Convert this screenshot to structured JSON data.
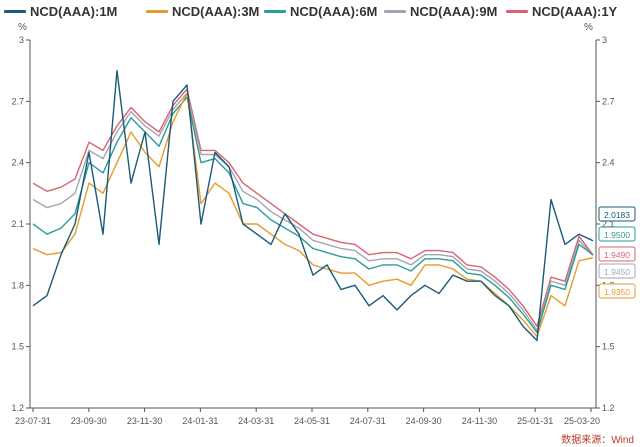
{
  "legend": [
    {
      "name": "NCD(AAA):1M",
      "color": "#1b5a78"
    },
    {
      "name": "NCD(AAA):3M",
      "color": "#e89a2c"
    },
    {
      "name": "NCD(AAA):6M",
      "color": "#2a9d9a"
    },
    {
      "name": "NCD(AAA):9M",
      "color": "#a0a7b3"
    },
    {
      "name": "NCD(AAA):1Y",
      "color": "#d9646e"
    }
  ],
  "source_text": "数据来源：Wind",
  "chart_data": {
    "type": "line",
    "xlabel": "",
    "ylabel_left": "%",
    "ylabel_right": "%",
    "ylim": [
      1.2,
      3.0
    ],
    "yticks": [
      "1.2",
      "1.5",
      "1.8",
      "2.1",
      "2.4",
      "2.7",
      "3"
    ],
    "xticks": [
      "23-07-31",
      "23-09-30",
      "23-11-30",
      "24-01-31",
      "24-03-31",
      "24-05-31",
      "24-07-31",
      "24-09-30",
      "24-11-30",
      "25-01-31",
      "25-03-20"
    ],
    "grid": false,
    "legend_position": "top",
    "end_labels": [
      {
        "series": "NCD(AAA):1M",
        "value": "2.0183"
      },
      {
        "series": "NCD(AAA):6M",
        "value": "1.9500"
      },
      {
        "series": "NCD(AAA):1Y",
        "value": "1.9490"
      },
      {
        "series": "NCD(AAA):9M",
        "value": "1.9450"
      },
      {
        "series": "NCD(AAA):3M",
        "value": "1.9350"
      }
    ],
    "series": [
      {
        "name": "NCD(AAA):1M",
        "color": "#1b5a78",
        "values": [
          1.7,
          1.75,
          1.95,
          2.1,
          2.45,
          2.05,
          2.85,
          2.3,
          2.55,
          2.0,
          2.7,
          2.78,
          2.1,
          2.45,
          2.38,
          2.1,
          2.05,
          2.0,
          2.15,
          2.05,
          1.85,
          1.9,
          1.78,
          1.8,
          1.7,
          1.75,
          1.68,
          1.75,
          1.8,
          1.76,
          1.85,
          1.82,
          1.82,
          1.75,
          1.7,
          1.6,
          1.53,
          2.22,
          2.0,
          2.05,
          2.0183
        ]
      },
      {
        "name": "NCD(AAA):3M",
        "color": "#e89a2c",
        "values": [
          1.98,
          1.95,
          1.96,
          2.05,
          2.3,
          2.25,
          2.4,
          2.55,
          2.45,
          2.38,
          2.6,
          2.74,
          2.2,
          2.3,
          2.25,
          2.1,
          2.1,
          2.05,
          2.0,
          1.97,
          1.9,
          1.88,
          1.86,
          1.86,
          1.8,
          1.82,
          1.83,
          1.8,
          1.9,
          1.9,
          1.88,
          1.83,
          1.82,
          1.76,
          1.7,
          1.63,
          1.55,
          1.75,
          1.7,
          1.92,
          1.935
        ]
      },
      {
        "name": "NCD(AAA):6M",
        "color": "#2a9d9a",
        "values": [
          2.1,
          2.05,
          2.08,
          2.15,
          2.4,
          2.35,
          2.5,
          2.62,
          2.55,
          2.48,
          2.64,
          2.72,
          2.4,
          2.42,
          2.35,
          2.2,
          2.18,
          2.12,
          2.08,
          2.04,
          1.98,
          1.96,
          1.94,
          1.93,
          1.88,
          1.9,
          1.9,
          1.87,
          1.93,
          1.93,
          1.92,
          1.86,
          1.85,
          1.8,
          1.74,
          1.66,
          1.57,
          1.8,
          1.78,
          2.0,
          1.95
        ]
      },
      {
        "name": "NCD(AAA):9M",
        "color": "#a0a7b3",
        "values": [
          2.22,
          2.18,
          2.2,
          2.25,
          2.46,
          2.42,
          2.55,
          2.65,
          2.58,
          2.53,
          2.66,
          2.74,
          2.44,
          2.44,
          2.38,
          2.26,
          2.22,
          2.16,
          2.12,
          2.08,
          2.02,
          2.0,
          1.98,
          1.97,
          1.92,
          1.93,
          1.93,
          1.9,
          1.95,
          1.95,
          1.94,
          1.88,
          1.87,
          1.82,
          1.76,
          1.68,
          1.58,
          1.82,
          1.8,
          2.02,
          1.945
        ]
      },
      {
        "name": "NCD(AAA):1Y",
        "color": "#d9646e",
        "values": [
          2.3,
          2.26,
          2.28,
          2.32,
          2.5,
          2.46,
          2.58,
          2.67,
          2.6,
          2.55,
          2.68,
          2.76,
          2.46,
          2.46,
          2.4,
          2.3,
          2.25,
          2.2,
          2.15,
          2.1,
          2.05,
          2.03,
          2.01,
          2.0,
          1.95,
          1.96,
          1.96,
          1.93,
          1.97,
          1.97,
          1.96,
          1.9,
          1.89,
          1.84,
          1.78,
          1.7,
          1.6,
          1.84,
          1.82,
          2.04,
          1.949
        ]
      }
    ]
  }
}
